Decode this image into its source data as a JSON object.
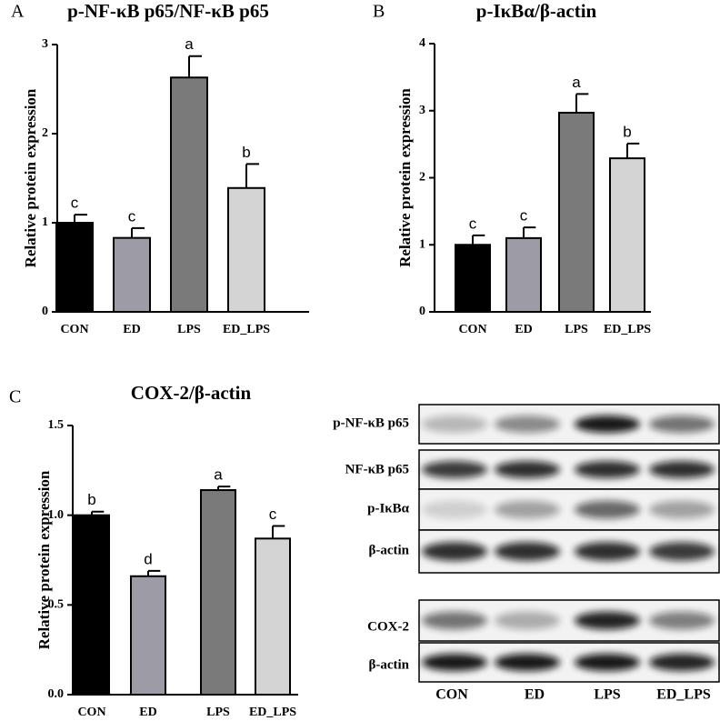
{
  "chart_data": [
    {
      "type": "bar",
      "panel": "A",
      "title": "p-NF-κB p65/NF-κB p65",
      "y_label": "Relative protein expression",
      "categories": [
        "CON",
        "ED",
        "LPS",
        "ED_LPS"
      ],
      "values": [
        1.0,
        0.83,
        2.63,
        1.39
      ],
      "errors": [
        0.09,
        0.11,
        0.24,
        0.27
      ],
      "annotations": [
        "c",
        "c",
        "a",
        "b"
      ],
      "colors": [
        "#000000",
        "#9d9ca6",
        "#7a7a7a",
        "#d4d4d4"
      ],
      "ylim": [
        0,
        3
      ],
      "yticks": [
        0,
        1,
        2,
        3
      ]
    },
    {
      "type": "bar",
      "panel": "B",
      "title": "p-IκBα/β-actin",
      "y_label": "Relative protein expression",
      "categories": [
        "CON",
        "ED",
        "LPS",
        "ED_LPS"
      ],
      "values": [
        1.0,
        1.1,
        2.97,
        2.29
      ],
      "errors": [
        0.14,
        0.16,
        0.28,
        0.22
      ],
      "annotations": [
        "c",
        "c",
        "a",
        "b"
      ],
      "colors": [
        "#000000",
        "#9d9ca6",
        "#7a7a7a",
        "#d4d4d4"
      ],
      "ylim": [
        0,
        4
      ],
      "yticks": [
        0,
        1,
        2,
        3,
        4
      ]
    },
    {
      "type": "bar",
      "panel": "C",
      "title": "COX-2/β-actin",
      "y_label": "Relative protein expression",
      "categories": [
        "CON",
        "ED",
        "LPS",
        "ED_LPS"
      ],
      "values": [
        1.0,
        0.66,
        1.14,
        0.87
      ],
      "errors": [
        0.02,
        0.03,
        0.02,
        0.07
      ],
      "annotations": [
        "b",
        "d",
        "a",
        "c"
      ],
      "colors": [
        "#000000",
        "#9d9ca6",
        "#7a7a7a",
        "#d4d4d4"
      ],
      "ylim": [
        0,
        1.5
      ],
      "yticks": [
        {
          "value": 0,
          "label": "0.0"
        },
        {
          "value": 0.5,
          "label": "0.5"
        },
        {
          "value": 1,
          "label": "1.0"
        },
        {
          "value": 1.5,
          "label": "1.5"
        }
      ]
    }
  ],
  "blot": {
    "row_labels": [
      "p-NF-κB p65",
      "NF-κB p65",
      "p-IκBα",
      "β-actin",
      "COX-2",
      "β-actin"
    ],
    "lane_labels": [
      "CON",
      "ED",
      "LPS",
      "ED_LPS"
    ]
  }
}
